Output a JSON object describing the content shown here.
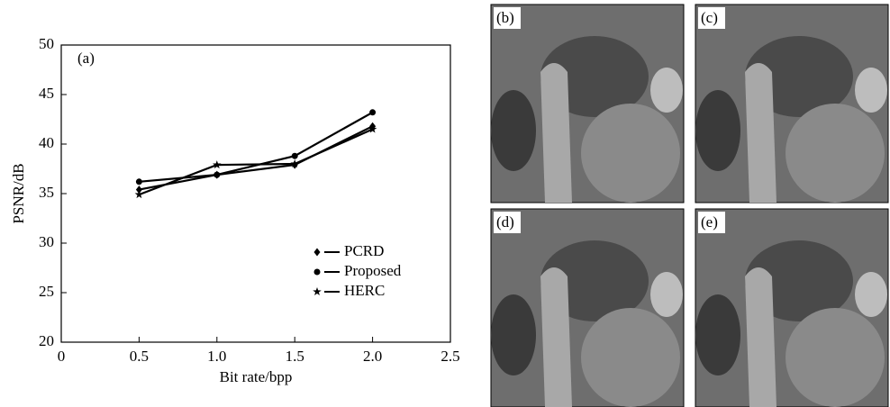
{
  "chart_data": {
    "type": "line",
    "panel_label": "(a)",
    "x_label": "Bit rate/bpp",
    "y_label": "PSNR/dB",
    "x": [
      0.5,
      1.0,
      1.5,
      2.0
    ],
    "series": [
      {
        "name": "PCRD",
        "color": "#000000",
        "marker": "diamond",
        "values": [
          35.4,
          36.9,
          37.9,
          41.8
        ]
      },
      {
        "name": "Proposed",
        "color": "#000000",
        "marker": "circle",
        "values": [
          36.2,
          36.9,
          38.8,
          43.2
        ]
      },
      {
        "name": "HERC",
        "color": "#000000",
        "marker": "star",
        "values": [
          34.9,
          37.9,
          38.0,
          41.5
        ]
      }
    ],
    "xlim": [
      0,
      2.5
    ],
    "xticks": [
      0,
      0.5,
      {
        "value": 1,
        "label": "1.0"
      },
      1.5,
      {
        "value": 2,
        "label": "2.0"
      },
      2.5
    ],
    "ylim": [
      20,
      50
    ],
    "yticks": [
      20,
      25,
      30,
      35,
      40,
      45,
      50
    ],
    "legend": "lower right"
  },
  "panels": [
    "(b)",
    "(c)",
    "(d)",
    "(e)"
  ]
}
